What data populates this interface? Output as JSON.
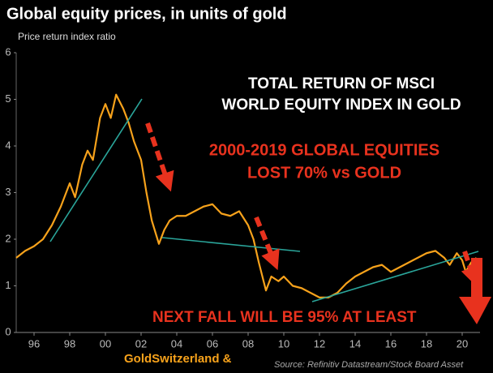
{
  "chart_data": {
    "type": "line",
    "title": "Global equity prices, in units of gold",
    "subtitle": "Price return index ratio",
    "box_text": [
      "TOTAL RETURN OF MSCI",
      "WORLD EQUITY INDEX IN GOLD"
    ],
    "red_text": [
      "2000-2019 GLOBAL EQUITIES",
      "LOST 70% vs GOLD"
    ],
    "bottom_text": "NEXT FALL WILL BE 95% AT LEAST",
    "brand": "GoldSwitzerland &",
    "source": "Source: Refinitiv Datastream/Stock Board Asset",
    "xlim": [
      1995,
      2021
    ],
    "xticks": [
      {
        "value": 1996,
        "label": "96"
      },
      {
        "value": 1998,
        "label": "98"
      },
      {
        "value": 2000,
        "label": "00"
      },
      {
        "value": 2002,
        "label": "02"
      },
      {
        "value": 2004,
        "label": "04"
      },
      {
        "value": 2006,
        "label": "06"
      },
      {
        "value": 2008,
        "label": "08"
      },
      {
        "value": 2010,
        "label": "10"
      },
      {
        "value": 2012,
        "label": "12"
      },
      {
        "value": 2014,
        "label": "14"
      },
      {
        "value": 2016,
        "label": "16"
      },
      {
        "value": 2018,
        "label": "18"
      },
      {
        "value": 2020,
        "label": "20"
      }
    ],
    "ylim": [
      0,
      6
    ],
    "yticks": [
      0,
      1,
      2,
      3,
      4,
      5,
      6
    ],
    "series": [
      {
        "color": "#f7a21b",
        "x": [
          1995.0,
          1995.5,
          1996.0,
          1996.5,
          1997.0,
          1997.5,
          1998.0,
          1998.3,
          1998.7,
          1999.0,
          1999.3,
          1999.7,
          2000.0,
          2000.3,
          2000.6,
          2001.0,
          2001.3,
          2001.6,
          2002.0,
          2002.3,
          2002.6,
          2003.0,
          2003.3,
          2003.6,
          2004.0,
          2004.5,
          2005.0,
          2005.5,
          2006.0,
          2006.5,
          2007.0,
          2007.5,
          2008.0,
          2008.3,
          2008.6,
          2009.0,
          2009.3,
          2009.7,
          2010.0,
          2010.5,
          2011.0,
          2011.5,
          2012.0,
          2012.5,
          2013.0,
          2013.5,
          2014.0,
          2014.5,
          2015.0,
          2015.5,
          2016.0,
          2016.5,
          2017.0,
          2017.5,
          2018.0,
          2018.5,
          2019.0,
          2019.3,
          2019.7,
          2020.0,
          2020.2,
          2020.5,
          2020.8
        ],
        "values": [
          1.6,
          1.75,
          1.85,
          2.0,
          2.3,
          2.7,
          3.2,
          2.9,
          3.6,
          3.9,
          3.7,
          4.6,
          4.9,
          4.6,
          5.1,
          4.8,
          4.5,
          4.1,
          3.7,
          3.0,
          2.4,
          1.9,
          2.2,
          2.4,
          2.5,
          2.5,
          2.6,
          2.7,
          2.75,
          2.55,
          2.5,
          2.6,
          2.3,
          2.0,
          1.5,
          0.9,
          1.2,
          1.1,
          1.2,
          1.0,
          0.95,
          0.85,
          0.75,
          0.75,
          0.85,
          1.05,
          1.2,
          1.3,
          1.4,
          1.45,
          1.3,
          1.4,
          1.5,
          1.6,
          1.7,
          1.75,
          1.6,
          1.45,
          1.7,
          1.55,
          1.3,
          1.5,
          1.6
        ]
      }
    ]
  }
}
